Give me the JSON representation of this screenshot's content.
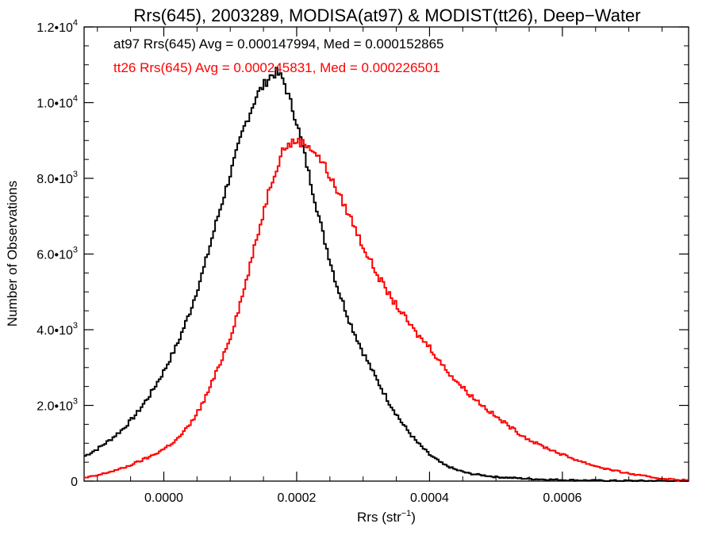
{
  "chart_data": {
    "type": "line",
    "title": "Rrs(645), 2003289, MODISA(at97) & MODIST(tt26), Deep−Water",
    "xlabel": {
      "base": "Rrs (str",
      "sup": "−1",
      "tail": ")"
    },
    "ylabel": "Number of Observations",
    "xlim": [
      -0.00012,
      0.00079
    ],
    "ylim": [
      0,
      12000
    ],
    "grid": false,
    "legend_position": "top-left",
    "x_ticks": [
      {
        "value": 0.0,
        "label": "0.0000"
      },
      {
        "value": 0.0002,
        "label": "0.0002"
      },
      {
        "value": 0.0004,
        "label": "0.0004"
      },
      {
        "value": 0.0006,
        "label": "0.0006"
      }
    ],
    "y_ticks": [
      {
        "value": 0,
        "mant": "0",
        "sup": ""
      },
      {
        "value": 2000,
        "mant": "2.0•10",
        "sup": "3"
      },
      {
        "value": 4000,
        "mant": "4.0•10",
        "sup": "3"
      },
      {
        "value": 6000,
        "mant": "6.0•10",
        "sup": "3"
      },
      {
        "value": 8000,
        "mant": "8.0•10",
        "sup": "3"
      },
      {
        "value": 10000,
        "mant": "1.0•10",
        "sup": "4"
      },
      {
        "value": 12000,
        "mant": "1.2•10",
        "sup": "4"
      }
    ],
    "series": [
      {
        "name": "at97",
        "color": "#000000",
        "legend": "at97 Rrs(645) Avg = 0.000147994, Med = 0.000152865",
        "x": [
          -0.00012,
          -0.0001,
          -8e-05,
          -6e-05,
          -4e-05,
          -2e-05,
          0.0,
          2e-05,
          4e-05,
          6e-05,
          8e-05,
          0.0001,
          0.00012,
          0.00014,
          0.00016,
          0.00017,
          0.00018,
          0.0002,
          0.00022,
          0.00024,
          0.00026,
          0.00028,
          0.0003,
          0.00032,
          0.00034,
          0.00036,
          0.00038,
          0.0004,
          0.00042,
          0.00044,
          0.00046,
          0.0005,
          0.00055,
          0.0006,
          0.00065,
          0.0007,
          0.00079
        ],
        "values": [
          650,
          850,
          1100,
          1400,
          1800,
          2300,
          2900,
          3600,
          4500,
          5600,
          6900,
          8100,
          9300,
          10200,
          10700,
          10800,
          10600,
          9500,
          8000,
          6500,
          5200,
          4200,
          3400,
          2700,
          2050,
          1500,
          1050,
          700,
          450,
          300,
          200,
          110,
          60,
          30,
          15,
          8,
          4
        ]
      },
      {
        "name": "tt26",
        "color": "#ff0000",
        "legend": "tt26 Rrs(645) Avg = 0.000245831, Med = 0.000226501",
        "x": [
          -0.00012,
          -0.0001,
          -8e-05,
          -6e-05,
          -4e-05,
          -2e-05,
          0.0,
          2e-05,
          4e-05,
          6e-05,
          8e-05,
          0.0001,
          0.00012,
          0.00014,
          0.00016,
          0.00018,
          0.0002,
          0.00022,
          0.00024,
          0.00026,
          0.00028,
          0.0003,
          0.00032,
          0.00034,
          0.00036,
          0.00038,
          0.0004,
          0.00042,
          0.00044,
          0.00046,
          0.00048,
          0.0005,
          0.00052,
          0.00054,
          0.00056,
          0.00058,
          0.0006,
          0.00062,
          0.00064,
          0.00066,
          0.00068,
          0.0007,
          0.00072,
          0.00074,
          0.00076,
          0.00079
        ],
        "values": [
          80,
          150,
          250,
          350,
          500,
          650,
          850,
          1100,
          1500,
          2100,
          2900,
          3800,
          5000,
          6400,
          7800,
          8800,
          9000,
          8850,
          8400,
          7700,
          7000,
          6200,
          5500,
          4900,
          4400,
          3900,
          3550,
          3050,
          2650,
          2300,
          2000,
          1700,
          1450,
          1200,
          1000,
          850,
          700,
          570,
          450,
          350,
          270,
          200,
          140,
          90,
          50,
          20
        ]
      }
    ]
  }
}
